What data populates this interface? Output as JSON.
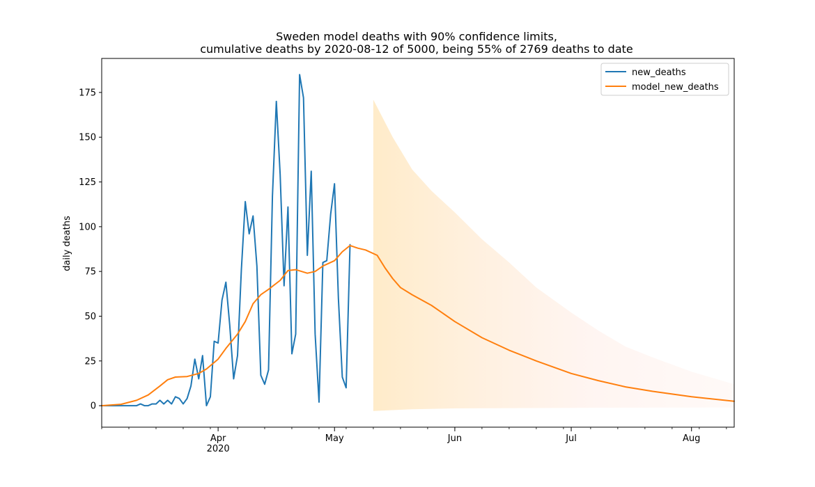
{
  "chart_data": {
    "type": "line",
    "title_line1": "Sweden model deaths with 90% confidence limits,",
    "title_line2": "cumulative deaths by 2020-08-12 of 5000, being 55% of 2769 deaths to date",
    "xlabel": "",
    "ylabel": "daily deaths",
    "xlim": [
      "2020-03-02",
      "2020-08-12"
    ],
    "ylim": [
      -12,
      194
    ],
    "yticks": [
      0,
      25,
      50,
      75,
      100,
      125,
      150,
      175
    ],
    "xticks": [
      {
        "date": "2020-04-01",
        "label": "Apr",
        "sublabel": "2020"
      },
      {
        "date": "2020-05-01",
        "label": "May",
        "sublabel": ""
      },
      {
        "date": "2020-06-01",
        "label": "Jun",
        "sublabel": ""
      },
      {
        "date": "2020-07-01",
        "label": "Jul",
        "sublabel": ""
      },
      {
        "date": "2020-08-01",
        "label": "Aug",
        "sublabel": ""
      }
    ],
    "legend_position": "top-right",
    "series": [
      {
        "name": "new_deaths",
        "color": "#1f77b4",
        "start_date": "2020-03-02",
        "values": [
          0,
          0,
          0,
          0,
          0,
          0,
          0,
          0,
          0,
          0,
          1,
          0,
          0,
          1,
          1,
          3,
          1,
          3,
          1,
          5,
          4,
          1,
          4,
          11,
          26,
          15,
          28,
          0,
          5,
          36,
          35,
          59,
          69,
          45,
          15,
          28,
          76,
          114,
          96,
          106,
          78,
          17,
          12,
          20,
          117,
          170,
          129,
          67,
          111,
          29,
          40,
          185,
          172,
          84,
          131,
          40,
          2,
          80,
          81,
          107,
          124,
          60,
          16,
          10,
          90
        ]
      },
      {
        "name": "model_new_deaths",
        "color": "#ff7f0e",
        "points": [
          [
            "2020-03-02",
            0
          ],
          [
            "2020-03-07",
            0.8
          ],
          [
            "2020-03-11",
            3
          ],
          [
            "2020-03-14",
            6
          ],
          [
            "2020-03-17",
            11
          ],
          [
            "2020-03-19",
            14.5
          ],
          [
            "2020-03-21",
            16
          ],
          [
            "2020-03-24",
            16.3
          ],
          [
            "2020-03-27",
            18
          ],
          [
            "2020-03-29",
            20.5
          ],
          [
            "2020-04-01",
            26
          ],
          [
            "2020-04-03",
            32
          ],
          [
            "2020-04-06",
            40
          ],
          [
            "2020-04-08",
            47
          ],
          [
            "2020-04-10",
            57
          ],
          [
            "2020-04-12",
            62
          ],
          [
            "2020-04-14",
            65
          ],
          [
            "2020-04-17",
            70
          ],
          [
            "2020-04-19",
            75.5
          ],
          [
            "2020-04-21",
            76
          ],
          [
            "2020-04-24",
            74
          ],
          [
            "2020-04-26",
            75
          ],
          [
            "2020-04-28",
            78
          ],
          [
            "2020-05-01",
            81
          ],
          [
            "2020-05-03",
            86
          ],
          [
            "2020-05-05",
            89.5
          ],
          [
            "2020-05-07",
            88
          ],
          [
            "2020-05-09",
            87
          ],
          [
            "2020-05-12",
            84
          ],
          [
            "2020-05-14",
            77
          ],
          [
            "2020-05-16",
            71
          ],
          [
            "2020-05-18",
            66
          ],
          [
            "2020-05-21",
            62
          ],
          [
            "2020-05-26",
            56
          ],
          [
            "2020-06-01",
            47
          ],
          [
            "2020-06-08",
            38
          ],
          [
            "2020-06-15",
            31
          ],
          [
            "2020-06-22",
            25
          ],
          [
            "2020-07-01",
            18
          ],
          [
            "2020-07-08",
            14
          ],
          [
            "2020-07-15",
            10.5
          ],
          [
            "2020-07-22",
            8
          ],
          [
            "2020-08-01",
            5
          ],
          [
            "2020-08-12",
            2.5
          ]
        ]
      }
    ],
    "confidence_band": {
      "color": "#ffe8c0",
      "label": "90% confidence limits",
      "upper": [
        [
          "2020-05-11",
          171
        ],
        [
          "2020-05-16",
          150
        ],
        [
          "2020-05-21",
          132
        ],
        [
          "2020-05-26",
          120
        ],
        [
          "2020-06-01",
          108
        ],
        [
          "2020-06-08",
          93
        ],
        [
          "2020-06-15",
          80
        ],
        [
          "2020-06-22",
          66
        ],
        [
          "2020-07-01",
          52
        ],
        [
          "2020-07-08",
          42
        ],
        [
          "2020-07-15",
          33
        ],
        [
          "2020-07-22",
          27
        ],
        [
          "2020-08-01",
          19
        ],
        [
          "2020-08-12",
          12
        ]
      ],
      "lower": [
        [
          "2020-05-11",
          -3
        ],
        [
          "2020-05-21",
          -2
        ],
        [
          "2020-06-01",
          -1.5
        ],
        [
          "2020-07-01",
          -1.2
        ],
        [
          "2020-08-12",
          -1
        ]
      ]
    }
  }
}
